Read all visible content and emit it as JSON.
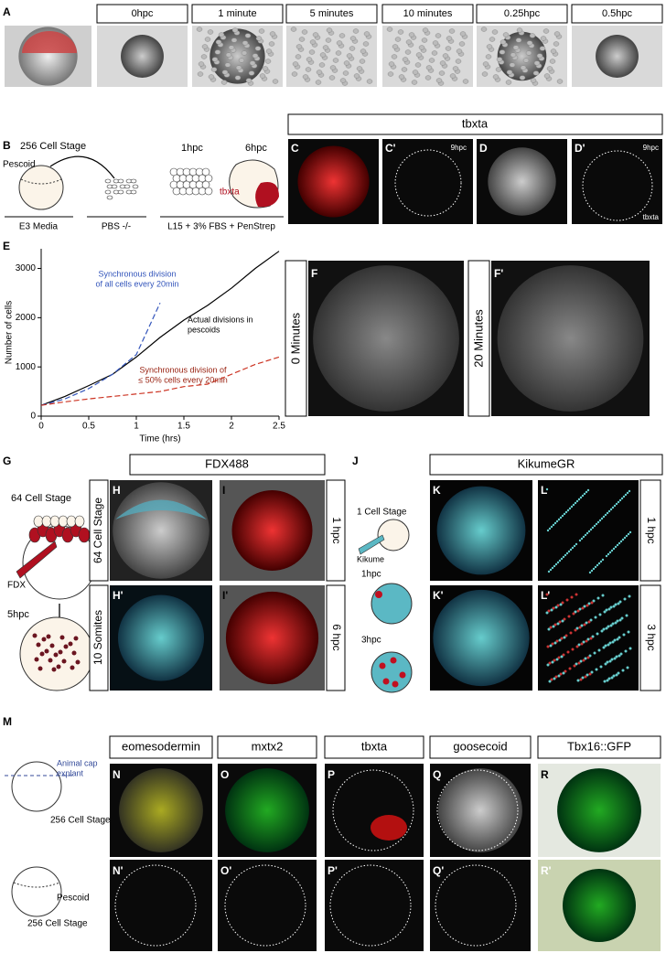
{
  "panel_labels": [
    "A",
    "B",
    "C",
    "C'",
    "D",
    "D'",
    "E",
    "F",
    "F'",
    "G",
    "H",
    "H'",
    "I",
    "I'",
    "J",
    "K",
    "K'",
    "L",
    "L'",
    "M",
    "N",
    "N'",
    "O",
    "O'",
    "P",
    "P'",
    "Q",
    "Q'",
    "R",
    "R'"
  ],
  "timecourse": [
    "0hpc",
    "1 minute",
    "5 minutes",
    "10 minutes",
    "0.25hpc",
    "0.5hpc"
  ],
  "panel_b": {
    "stage": "256 Cell Stage",
    "pescoid": "Pescoid",
    "t1": "1hpc",
    "t2": "6hpc",
    "marker": "tbxta",
    "media": [
      "E3 Media",
      "PBS -/-",
      "L15 + 3% FBS + PenStrep"
    ]
  },
  "panel_c": {
    "header": "tbxta",
    "time_c": "9hpc",
    "time_d": "9hpc",
    "marker_d": "tbxta"
  },
  "panel_f": {
    "before": "0 Minutes",
    "after": "20 Minutes"
  },
  "panel_g": {
    "stage": "64 Cell Stage",
    "dye": "FDX",
    "time": "5hpc"
  },
  "panel_h": {
    "header": "FDX488",
    "rows": [
      "64 Cell Stage",
      "10 Somites"
    ],
    "times": [
      "1 hpc",
      "6 hpc"
    ]
  },
  "panel_j": {
    "stage": "1 Cell Stage",
    "dye": "Kikume",
    "t1": "1hpc",
    "t2": "3hpc",
    "header": "KikumeGR",
    "times": [
      "1 hpc",
      "3 hpc"
    ]
  },
  "panel_m": {
    "cap": [
      "Animal cap",
      "explant"
    ],
    "stage1": "256 Cell Stage",
    "pescoid": "Pescoid",
    "stage2": "256 Cell Stage",
    "markers": [
      "eomesodermin",
      "mxtx2",
      "tbxta",
      "goosecoid",
      "Tbx16::GFP"
    ]
  },
  "chart_data": {
    "type": "line",
    "xlabel": "Time (hrs)",
    "ylabel": "Number of cells",
    "x": [
      0,
      0.25,
      0.5,
      0.75,
      1,
      1.25,
      1.5,
      1.75,
      2,
      2.25,
      2.5
    ],
    "series": [
      {
        "name": "Actual divisions in pescoids",
        "color": "#000000",
        "dashed": false,
        "values": [
          220,
          400,
          620,
          850,
          1200,
          1600,
          1950,
          2250,
          2600,
          3000,
          3350
        ]
      },
      {
        "name": "Synchronous division of all cells every 20min",
        "color": "#3355bb",
        "dashed": true,
        "values": [
          220,
          350,
          560,
          850,
          1250,
          2300,
          null,
          null,
          null,
          null,
          null
        ]
      },
      {
        "name": "Synchronous division of ≤ 50% cells every 20min",
        "color": "#cc3322",
        "dashed": true,
        "values": [
          220,
          290,
          350,
          400,
          450,
          500,
          600,
          650,
          850,
          1050,
          1200
        ]
      }
    ],
    "annotations": [
      {
        "lines": [
          "Synchronous division",
          "of all cells every 20min"
        ],
        "color": "#3355bb"
      },
      {
        "lines": [
          "Actual divisions in",
          "pescoids"
        ],
        "color": "#000000"
      },
      {
        "lines": [
          "Synchronous division of",
          "≤ 50% cells every 20min"
        ],
        "color": "#992211"
      }
    ],
    "xlim": [
      0,
      2.5
    ],
    "ylim": [
      0,
      3400
    ],
    "xticks": [
      0,
      0.5,
      1,
      1.5,
      2,
      2.5
    ],
    "yticks": [
      0,
      1000,
      2000,
      3000
    ]
  }
}
